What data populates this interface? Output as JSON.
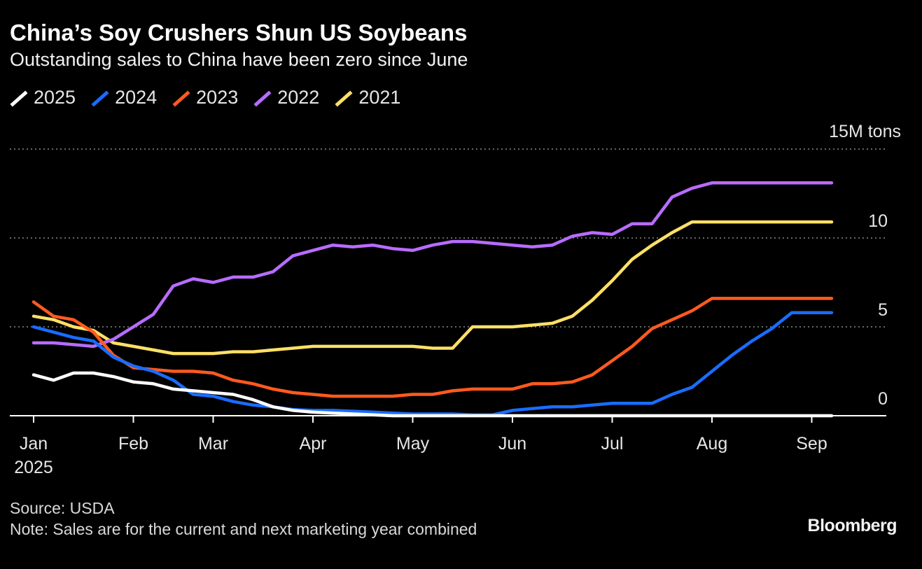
{
  "chart_data": {
    "type": "line",
    "title": "China’s Soy Crushers Shun US Soybeans",
    "subtitle": "Outstanding sales to China have been zero since June",
    "ylabel": "15M tons",
    "ylim": [
      0,
      15
    ],
    "yticks": [
      0,
      5,
      10
    ],
    "grid": true,
    "legend_position": "top-left",
    "x_tick_labels": [
      "Jan",
      "Feb",
      "Mar",
      "Apr",
      "May",
      "Jun",
      "Jul",
      "Aug",
      "Sep"
    ],
    "x_tick_sublabel": "2025",
    "x_week_positions": [
      0,
      5,
      9,
      14,
      19,
      24,
      29,
      34,
      39
    ],
    "series": [
      {
        "name": "2025",
        "color": "#ffffff",
        "x": [
          0,
          1,
          2,
          3,
          4,
          5,
          6,
          7,
          8,
          9,
          10,
          11,
          12,
          13,
          14,
          15,
          16,
          17,
          18,
          19,
          20,
          21,
          22,
          23,
          24,
          25,
          26,
          27,
          28,
          29,
          30,
          31,
          32,
          33,
          34,
          35,
          36,
          37,
          38,
          39,
          40
        ],
        "values": [
          2.3,
          2.0,
          2.4,
          2.4,
          2.2,
          1.9,
          1.8,
          1.5,
          1.4,
          1.3,
          1.2,
          0.9,
          0.5,
          0.3,
          0.2,
          0.15,
          0.1,
          0.05,
          0.0,
          0.0,
          0.0,
          0.0,
          0.0,
          0.0,
          0.0,
          0.0,
          0.0,
          0.0,
          0.0,
          0.0,
          0.0,
          0.0,
          0.0,
          0.0,
          0.0,
          0.0,
          0.0,
          0.0,
          0.0,
          0.0,
          0.0
        ]
      },
      {
        "name": "2024",
        "color": "#1a6cff",
        "x": [
          0,
          1,
          2,
          3,
          4,
          5,
          6,
          7,
          8,
          9,
          10,
          11,
          12,
          13,
          14,
          15,
          16,
          17,
          18,
          19,
          20,
          21,
          22,
          23,
          24,
          25,
          26,
          27,
          28,
          29,
          30,
          31,
          32,
          33,
          34,
          35,
          36,
          37,
          38,
          39,
          40
        ],
        "values": [
          5.0,
          4.7,
          4.4,
          4.2,
          3.3,
          2.8,
          2.5,
          2.0,
          1.2,
          1.1,
          0.8,
          0.6,
          0.5,
          0.35,
          0.3,
          0.3,
          0.25,
          0.2,
          0.15,
          0.1,
          0.1,
          0.1,
          0.05,
          0.05,
          0.3,
          0.4,
          0.5,
          0.5,
          0.6,
          0.7,
          0.7,
          0.7,
          1.2,
          1.6,
          2.5,
          3.4,
          4.2,
          4.9,
          5.8,
          5.8,
          5.8
        ]
      },
      {
        "name": "2023",
        "color": "#ff5a1f",
        "x": [
          0,
          1,
          2,
          3,
          4,
          5,
          6,
          7,
          8,
          9,
          10,
          11,
          12,
          13,
          14,
          15,
          16,
          17,
          18,
          19,
          20,
          21,
          22,
          23,
          24,
          25,
          26,
          27,
          28,
          29,
          30,
          31,
          32,
          33,
          34,
          35,
          36,
          37,
          38,
          39,
          40
        ],
        "values": [
          6.4,
          5.6,
          5.4,
          4.7,
          3.4,
          2.7,
          2.6,
          2.5,
          2.5,
          2.4,
          2.0,
          1.8,
          1.5,
          1.3,
          1.2,
          1.1,
          1.1,
          1.1,
          1.1,
          1.2,
          1.2,
          1.4,
          1.5,
          1.5,
          1.5,
          1.8,
          1.8,
          1.9,
          2.3,
          3.1,
          3.9,
          4.9,
          5.4,
          5.9,
          6.6,
          6.6,
          6.6,
          6.6,
          6.6,
          6.6,
          6.6
        ]
      },
      {
        "name": "2022",
        "color": "#b86cff",
        "x": [
          0,
          1,
          2,
          3,
          4,
          5,
          6,
          7,
          8,
          9,
          10,
          11,
          12,
          13,
          14,
          15,
          16,
          17,
          18,
          19,
          20,
          21,
          22,
          23,
          24,
          25,
          26,
          27,
          28,
          29,
          30,
          31,
          32,
          33,
          34,
          35,
          36,
          37,
          38,
          39,
          40
        ],
        "values": [
          4.1,
          4.1,
          4.0,
          3.9,
          4.3,
          5.0,
          5.7,
          7.3,
          7.7,
          7.5,
          7.8,
          7.8,
          8.1,
          9.0,
          9.3,
          9.6,
          9.5,
          9.6,
          9.4,
          9.3,
          9.6,
          9.8,
          9.8,
          9.7,
          9.6,
          9.5,
          9.6,
          10.1,
          10.3,
          10.2,
          10.8,
          10.8,
          12.3,
          12.8,
          13.1,
          13.1,
          13.1,
          13.1,
          13.1,
          13.1,
          13.1
        ]
      },
      {
        "name": "2021",
        "color": "#ffe066",
        "x": [
          0,
          1,
          2,
          3,
          4,
          5,
          6,
          7,
          8,
          9,
          10,
          11,
          12,
          13,
          14,
          15,
          16,
          17,
          18,
          19,
          20,
          21,
          22,
          23,
          24,
          25,
          26,
          27,
          28,
          29,
          30,
          31,
          32,
          33,
          34,
          35,
          36,
          37,
          38,
          39,
          40
        ],
        "values": [
          5.6,
          5.4,
          5.0,
          4.8,
          4.1,
          3.9,
          3.7,
          3.5,
          3.5,
          3.5,
          3.6,
          3.6,
          3.7,
          3.8,
          3.9,
          3.9,
          3.9,
          3.9,
          3.9,
          3.9,
          3.8,
          3.8,
          5.0,
          5.0,
          5.0,
          5.1,
          5.2,
          5.6,
          6.5,
          7.6,
          8.8,
          9.6,
          10.3,
          10.9,
          10.9,
          10.9,
          10.9,
          10.9,
          10.9,
          10.9,
          10.9
        ]
      }
    ]
  },
  "source": "Source: USDA",
  "note": "Note: Sales are for the current and next marketing year combined",
  "brand": "Bloomberg"
}
